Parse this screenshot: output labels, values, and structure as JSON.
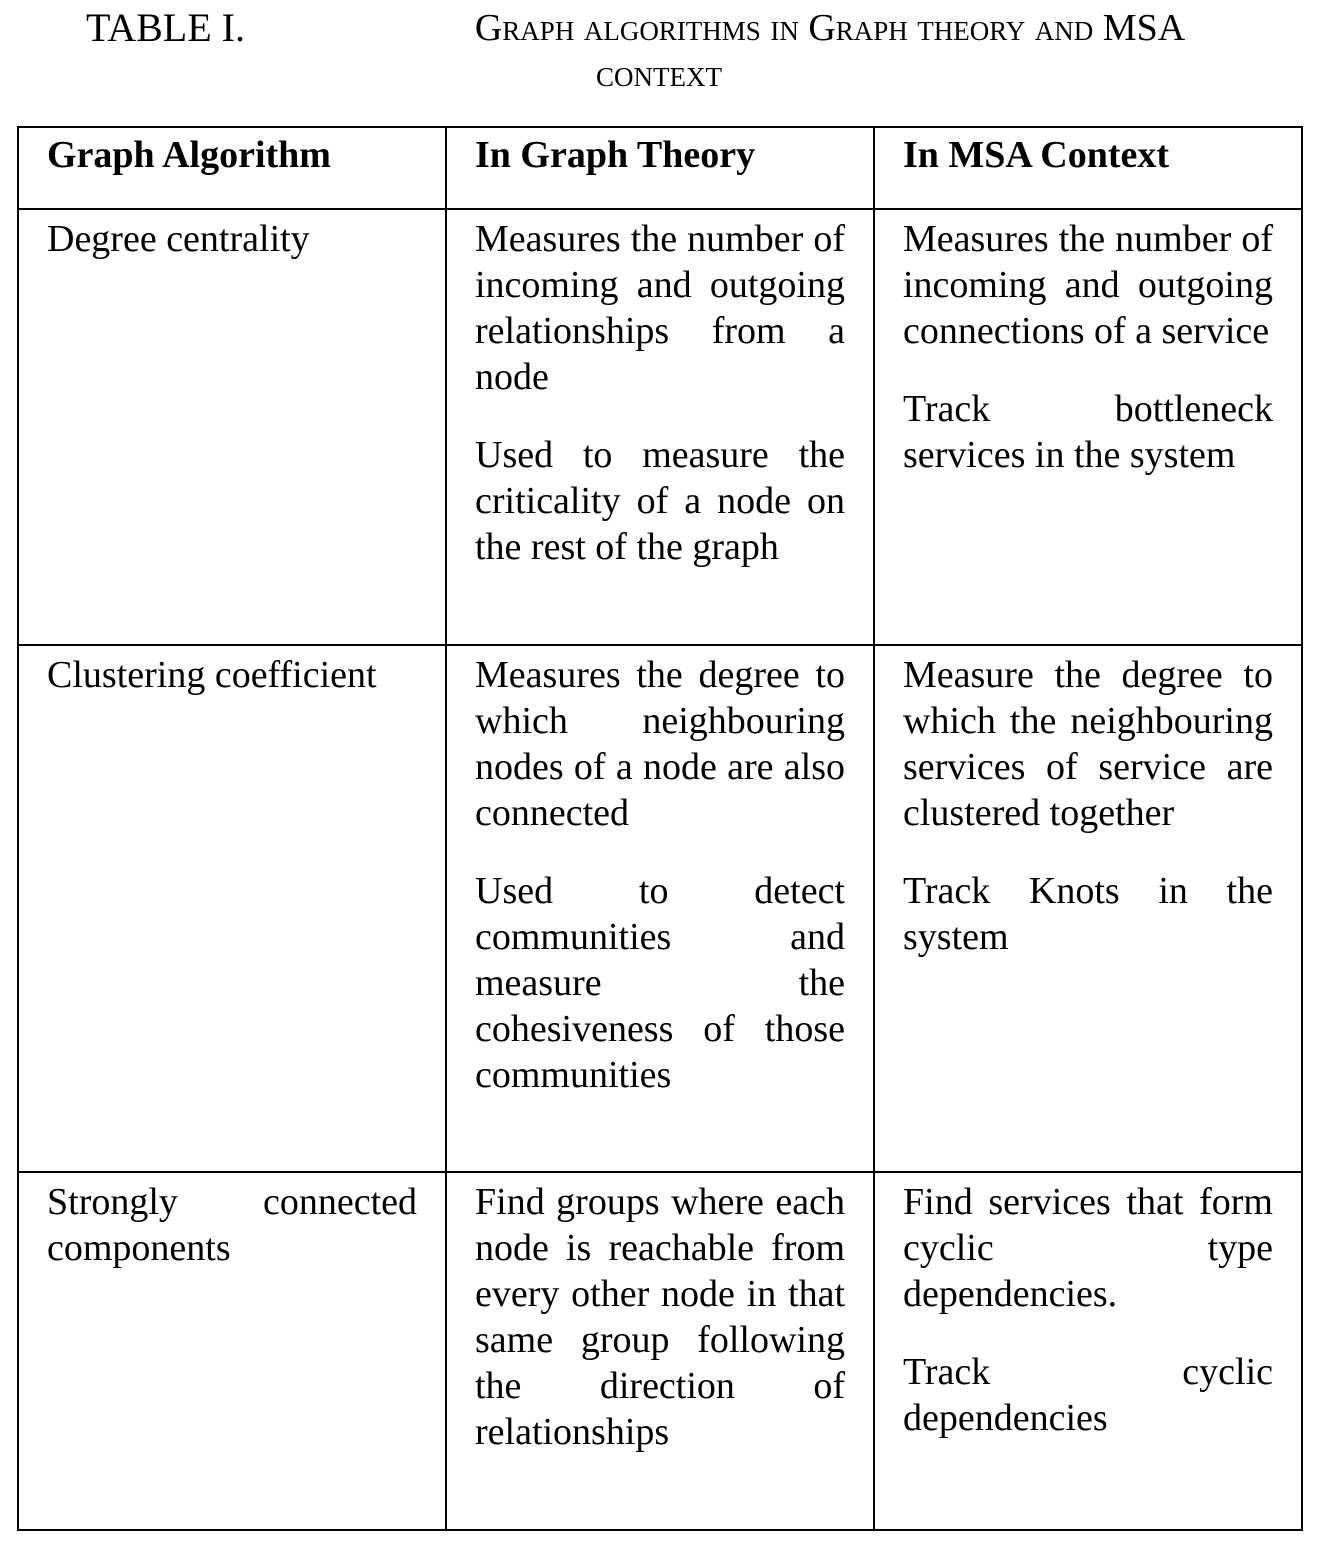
{
  "caption": {
    "label": "TABLE I.",
    "title_line1": "Graph algorithms in Graph theory and MSA",
    "title_line2": "context"
  },
  "table": {
    "headers": [
      "Graph Algorithm",
      "In Graph Theory",
      "In MSA Context"
    ],
    "rows": [
      {
        "algorithm": "Degree centrality",
        "graph_theory": [
          "Measures the number of incoming and outgoing relationships from a node",
          "Used to measure the criticality of a node on the rest of the graph"
        ],
        "msa_context": [
          "Measures the number of incoming and outgoing connections of a service",
          "Track bottleneck services in the system"
        ]
      },
      {
        "algorithm": "Clustering coefficient",
        "graph_theory": [
          "Measures the degree to which neighbouring nodes of a node are also connected",
          "Used to detect communities and measure the cohesiveness of those communities"
        ],
        "msa_context": [
          "Measure the degree to which the neighbouring services of service are clustered together",
          "Track Knots in the system"
        ]
      },
      {
        "algorithm": "Strongly connected components",
        "graph_theory": [
          "Find groups where each node is reachable from every other node in that same group following the direction of relationships"
        ],
        "msa_context": [
          "Find services that form cyclic type dependencies.",
          "Track cyclic dependencies"
        ]
      }
    ]
  }
}
